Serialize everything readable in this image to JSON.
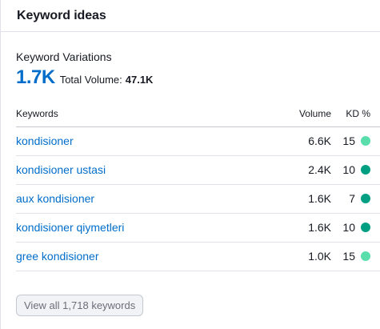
{
  "header": {
    "title": "Keyword ideas"
  },
  "summary": {
    "label": "Keyword Variations",
    "count": "1.7K",
    "total_label": "Total Volume:",
    "total_value": "47.1K"
  },
  "table": {
    "columns": {
      "keyword": "Keywords",
      "volume": "Volume",
      "kd": "KD %"
    },
    "rows": [
      {
        "keyword": "kondisioner",
        "volume": "6.6K",
        "kd": "15",
        "kd_color": "#59ddaa"
      },
      {
        "keyword": "kondisioner ustasi",
        "volume": "2.4K",
        "kd": "10",
        "kd_color": "#009f81"
      },
      {
        "keyword": "aux kondisioner",
        "volume": "1.6K",
        "kd": "7",
        "kd_color": "#009f81"
      },
      {
        "keyword": "kondisioner qiymetleri",
        "volume": "1.6K",
        "kd": "10",
        "kd_color": "#009f81"
      },
      {
        "keyword": "gree kondisioner",
        "volume": "1.0K",
        "kd": "15",
        "kd_color": "#59ddaa"
      }
    ]
  },
  "footer": {
    "view_all_label": "View all 1,718 keywords"
  },
  "colors": {
    "link": "#006dca",
    "accent_count": "#006dca"
  }
}
